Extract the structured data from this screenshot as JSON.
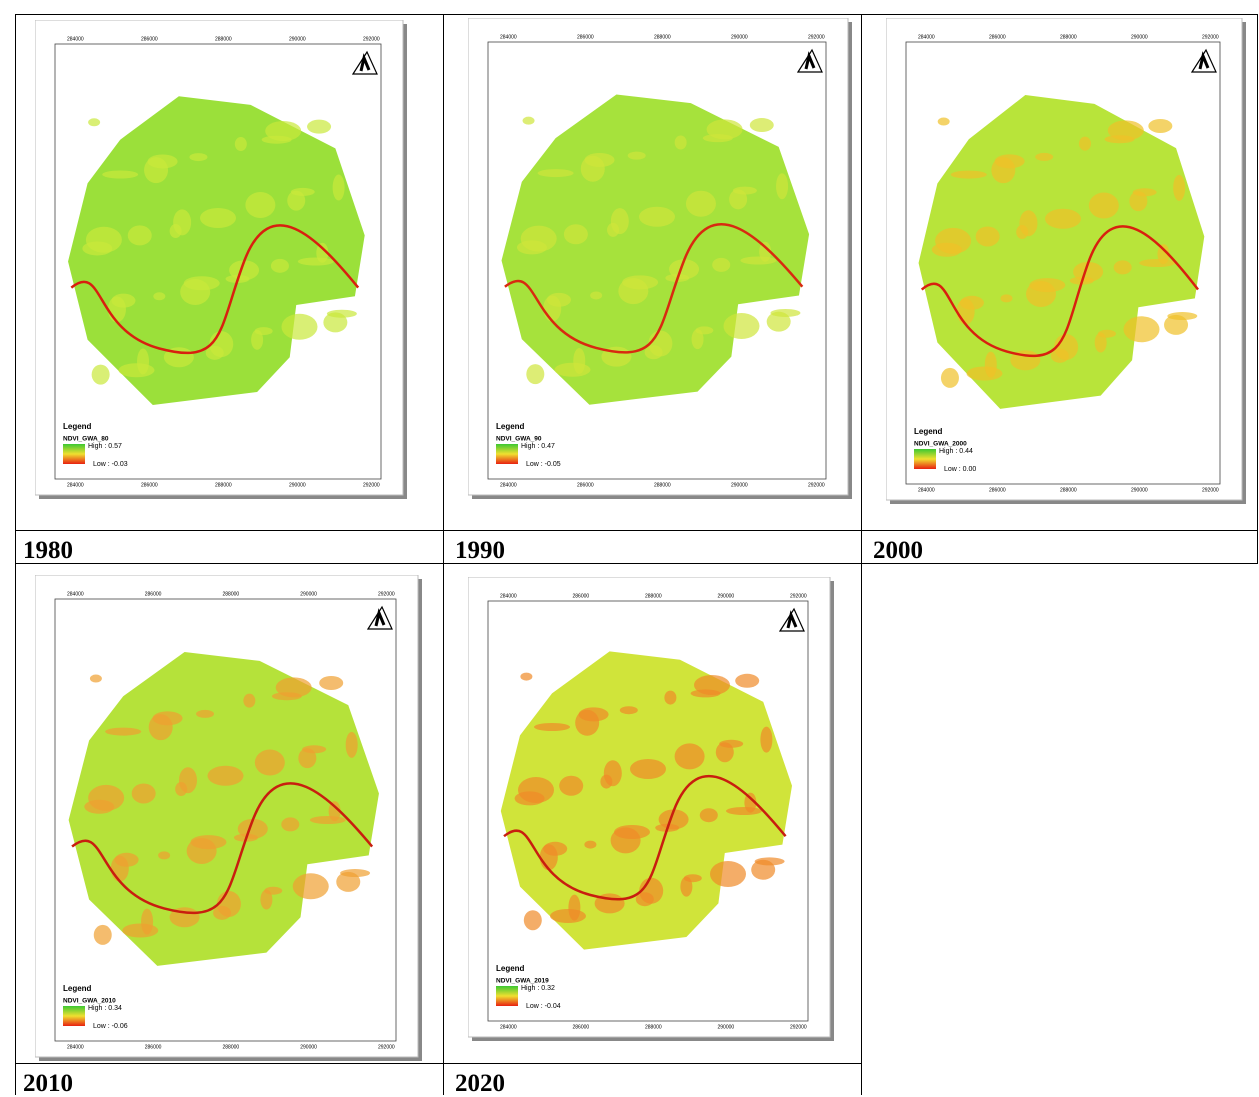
{
  "panels": [
    {
      "year": "1980",
      "legend_title": "Legend",
      "layer": "NDVI_GWA_80",
      "high": "High : 0.57",
      "low": "Low : -0.03",
      "x_labels": [
        "284000",
        "286000",
        "288000",
        "290000",
        "292000"
      ]
    },
    {
      "year": "1990",
      "legend_title": "Legend",
      "layer": "NDVI_GWA_90",
      "high": "High : 0.47",
      "low": "Low : -0.05",
      "x_labels": [
        "284000",
        "286000",
        "288000",
        "290000",
        "292000"
      ]
    },
    {
      "year": "2000",
      "legend_title": "Legend",
      "layer": "NDVI_GWA_2000",
      "high": "High : 0.44",
      "low": "Low : 0.00",
      "x_labels": [
        "284000",
        "286000",
        "288000",
        "290000",
        "292000"
      ]
    },
    {
      "year": "2010",
      "legend_title": "Legend",
      "layer": "NDVI_GWA_2010",
      "high": "High : 0.34",
      "low": "Low : -0.06",
      "x_labels": [
        "284000",
        "286000",
        "288000",
        "290000",
        "292000"
      ]
    },
    {
      "year": "2020",
      "legend_title": "Legend",
      "layer": "NDVI_GWA_2019",
      "high": "High : 0.32",
      "low": "Low : -0.04",
      "x_labels": [
        "284000",
        "286000",
        "288000",
        "290000",
        "292000"
      ]
    }
  ]
}
